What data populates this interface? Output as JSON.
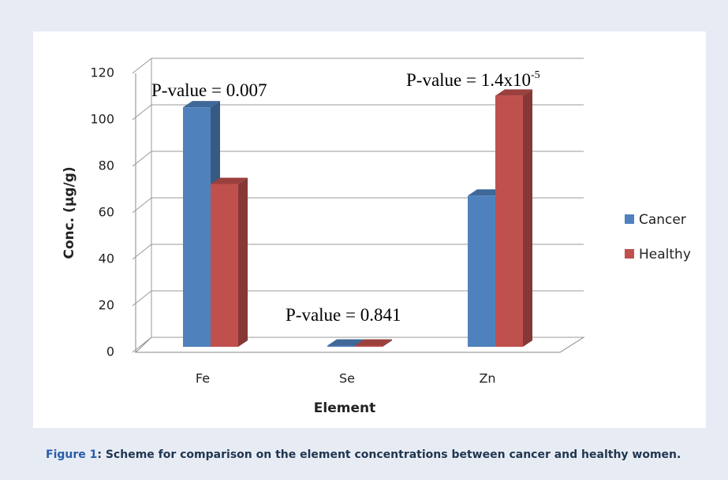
{
  "chart_data": {
    "type": "bar3d",
    "xlabel": "Element",
    "ylabel": "Conc. (µg/g)",
    "categories": [
      "Fe",
      "Se",
      "Zn"
    ],
    "series": [
      {
        "name": "Cancer",
        "color": "#4f81bd",
        "values": [
          103,
          0.5,
          65
        ]
      },
      {
        "name": "Healthy",
        "color": "#c0504d",
        "values": [
          70,
          0.5,
          108
        ]
      }
    ],
    "ylim": [
      0,
      120
    ],
    "yticks": [
      0,
      20,
      40,
      60,
      80,
      100,
      120
    ],
    "grid": true,
    "legend": "right",
    "annotations": [
      {
        "text": "P-value = 0.007"
      },
      {
        "text": "P-value = 0.841"
      },
      {
        "text": "P-value = 1.4x10",
        "superscript": "-5"
      }
    ]
  },
  "caption": {
    "label": "Figure 1",
    "text": ": Scheme for comparison on the element concentrations between cancer and healthy women."
  }
}
